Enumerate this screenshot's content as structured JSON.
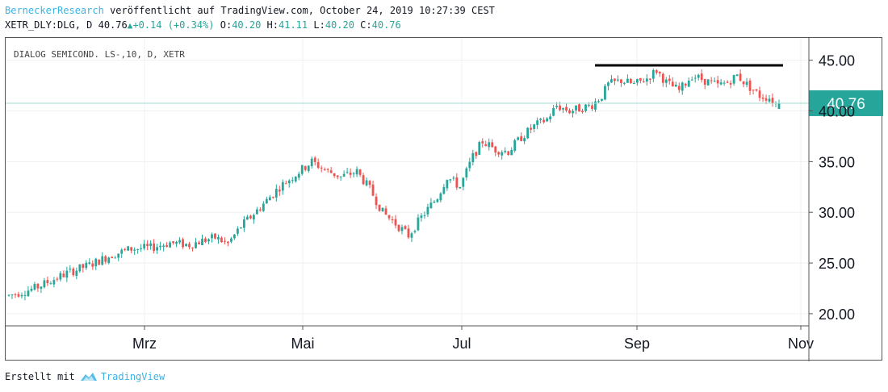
{
  "header": {
    "author": "BerneckerResearch",
    "published_text": "veröffentlicht auf TradingView.com, October 24, 2019 10:27:39 CEST",
    "symbol_line_prefix": "XETR_DLY:DLG, D 40.76",
    "change": "+0.14 (+0.34%)",
    "open_label": "O:",
    "open_value": "40.20",
    "high_label": "H:",
    "high_value": "41.11",
    "low_label": "L:",
    "low_value": "40.20",
    "close_label": "C:",
    "close_value": "40.76"
  },
  "footer": {
    "created_with": "Erstellt mit",
    "brand": "TradingView"
  },
  "chart_data": {
    "type": "candlestick",
    "title": "DIALOG SEMICOND. LS-,10, D, XETR",
    "y_ticks": [
      "45.00",
      "40.00",
      "35.00",
      "30.00",
      "25.00",
      "20.00"
    ],
    "ylim": [
      18.8,
      47.2
    ],
    "x_ticks": [
      "Mrz",
      "Mai",
      "Jul",
      "Sep",
      "Nov"
    ],
    "last_price": 40.76,
    "last_price_label": "40.76",
    "resistance_level": 44.5,
    "colors": {
      "up": "#26a69a",
      "down": "#ef5350",
      "resistance": "#000000",
      "price_tag": "#26a69a"
    },
    "trend_points": [
      [
        0,
        21.8
      ],
      [
        8,
        22.5
      ],
      [
        18,
        24.0
      ],
      [
        25,
        24.8
      ],
      [
        32,
        25.8
      ],
      [
        38,
        26.4
      ],
      [
        44,
        26.5
      ],
      [
        50,
        27.0
      ],
      [
        56,
        26.8
      ],
      [
        60,
        27.2
      ],
      [
        64,
        27.5
      ],
      [
        68,
        26.9
      ],
      [
        72,
        28.6
      ],
      [
        78,
        30.5
      ],
      [
        84,
        32.5
      ],
      [
        90,
        34.0
      ],
      [
        94,
        35.0
      ],
      [
        98,
        34.2
      ],
      [
        103,
        33.5
      ],
      [
        108,
        34.0
      ],
      [
        112,
        32.3
      ],
      [
        116,
        30.0
      ],
      [
        121,
        28.6
      ],
      [
        124,
        27.7
      ],
      [
        128,
        29.5
      ],
      [
        133,
        31.5
      ],
      [
        136,
        33.5
      ],
      [
        140,
        32.5
      ],
      [
        144,
        35.5
      ],
      [
        147,
        37.0
      ],
      [
        151,
        36.2
      ],
      [
        155,
        36.0
      ],
      [
        159,
        37.4
      ],
      [
        163,
        38.5
      ],
      [
        167,
        39.2
      ],
      [
        170,
        40.5
      ],
      [
        174,
        40.0
      ],
      [
        178,
        40.3
      ],
      [
        181,
        40.6
      ],
      [
        184,
        41.5
      ],
      [
        186,
        42.6
      ],
      [
        190,
        43.0
      ],
      [
        194,
        42.6
      ],
      [
        198,
        43.2
      ],
      [
        201,
        44.0
      ],
      [
        204,
        42.8
      ],
      [
        208,
        42.0
      ],
      [
        212,
        43.5
      ],
      [
        216,
        43.0
      ],
      [
        220,
        42.5
      ],
      [
        223,
        42.8
      ],
      [
        226,
        43.5
      ],
      [
        229,
        42.6
      ],
      [
        233,
        41.5
      ],
      [
        236,
        41.3
      ],
      [
        238,
        40.76
      ]
    ]
  }
}
